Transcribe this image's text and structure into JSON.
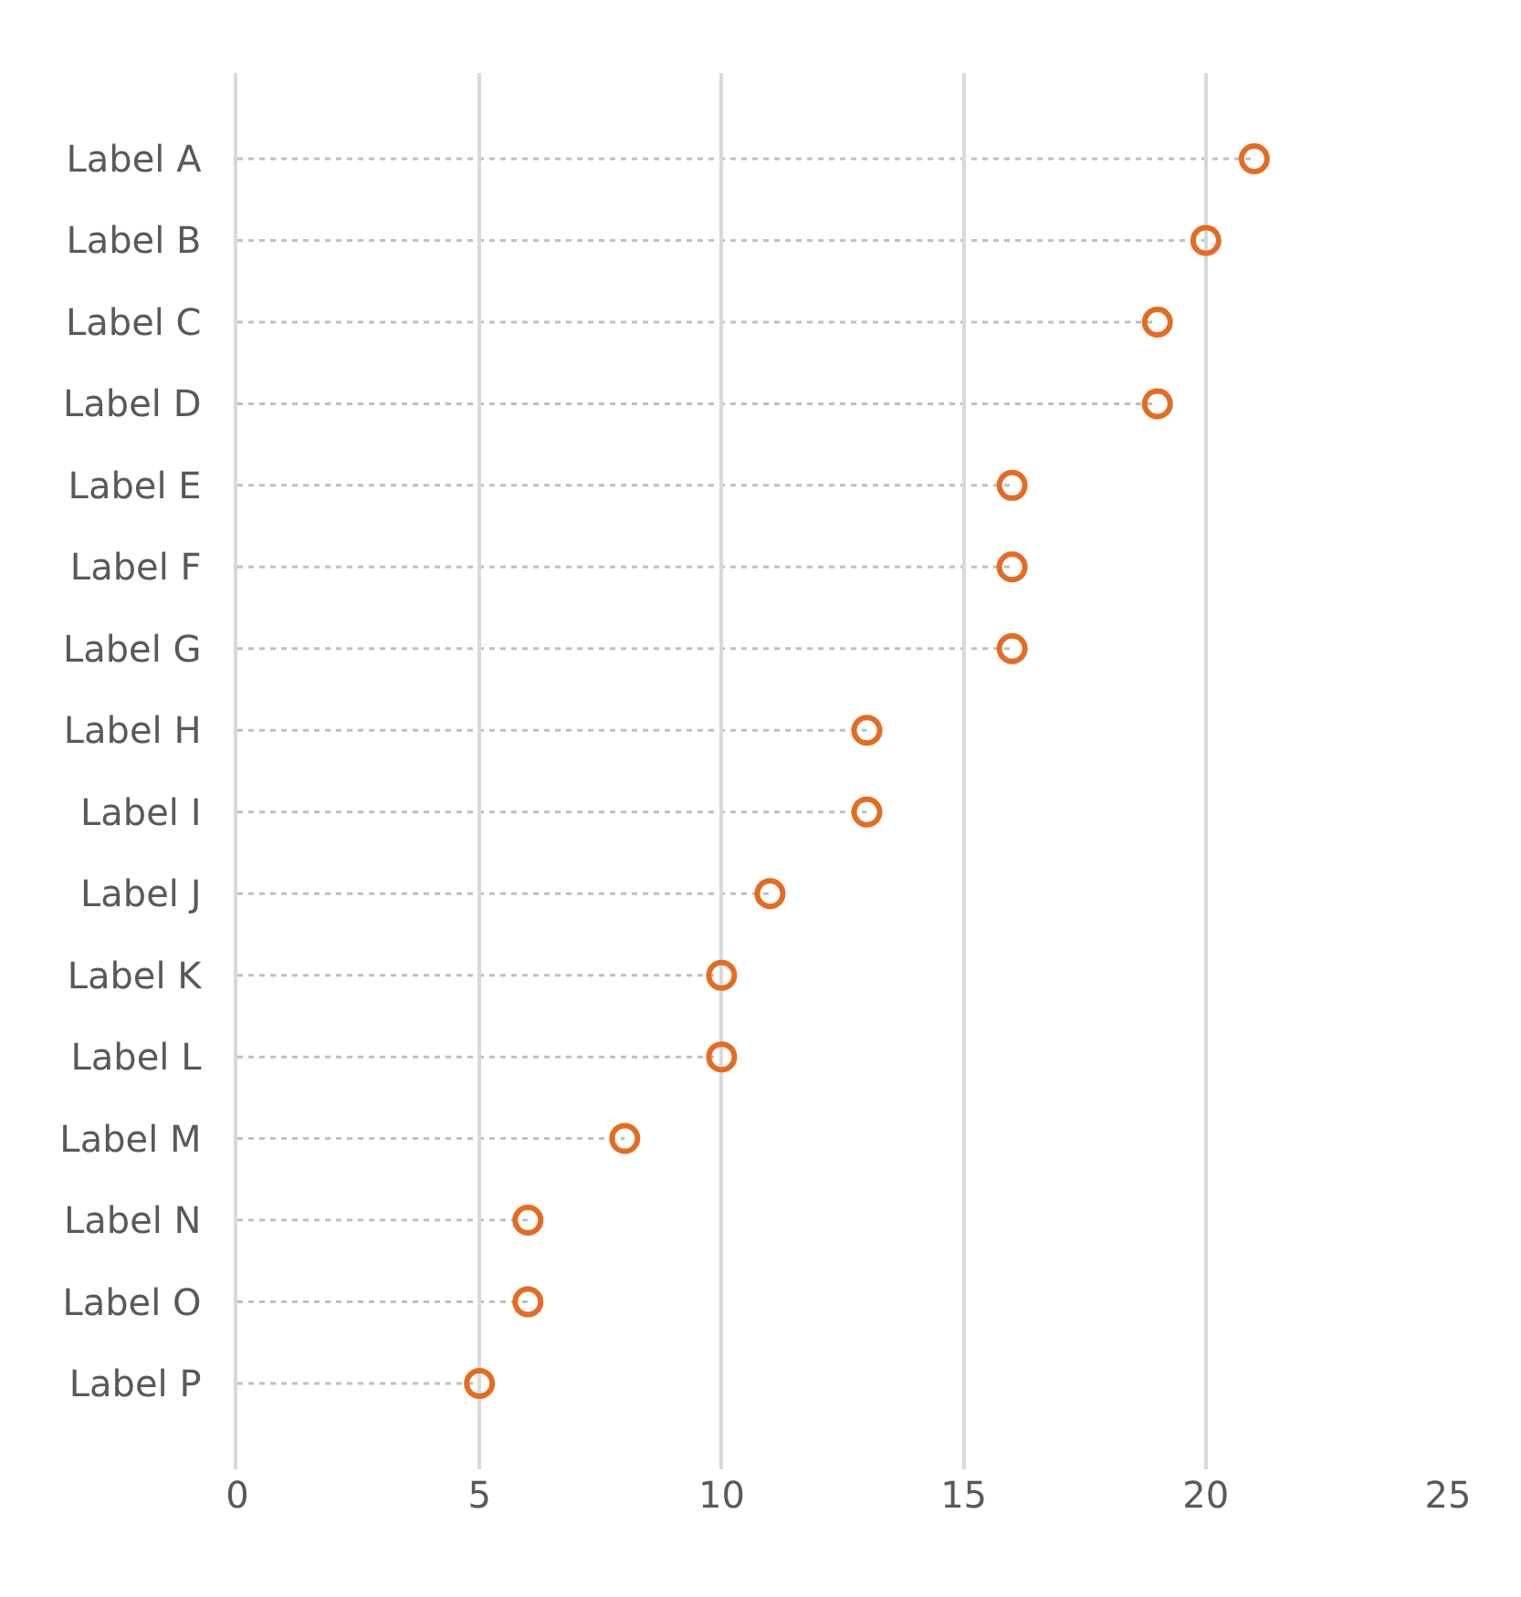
{
  "chart_data": {
    "type": "lollipop",
    "orientation": "horizontal",
    "categories": [
      "Label A",
      "Label B",
      "Label C",
      "Label D",
      "Label E",
      "Label F",
      "Label G",
      "Label H",
      "Label I",
      "Label J",
      "Label K",
      "Label L",
      "Label M",
      "Label N",
      "Label O",
      "Label P"
    ],
    "values": [
      21,
      20,
      19,
      19,
      16,
      16,
      16,
      13,
      13,
      11,
      10,
      10,
      8,
      6,
      6,
      5
    ],
    "color": "#e46c22",
    "xlim": [
      0,
      25
    ],
    "xticks": [
      0,
      5,
      10,
      15,
      20,
      25
    ],
    "grid": "x",
    "marker": "circle",
    "line_style": "dotted"
  }
}
